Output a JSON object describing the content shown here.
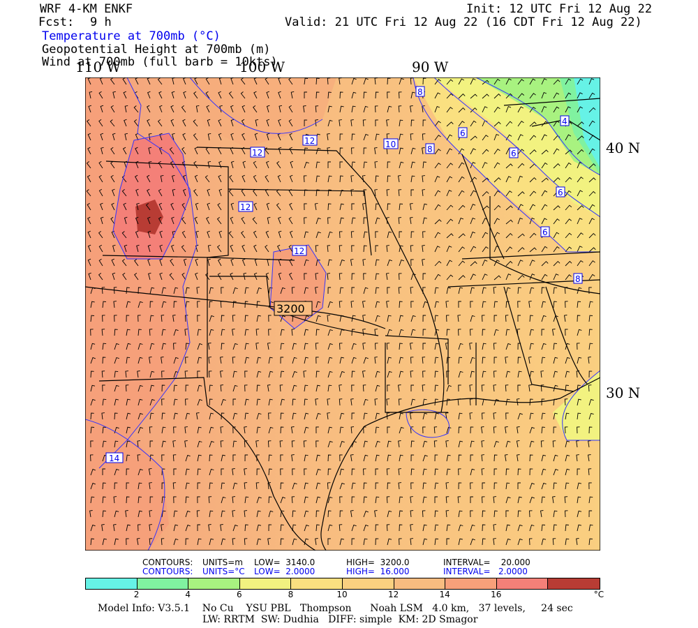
{
  "header": {
    "model": "WRF 4-KM ENKF",
    "fcst_label": "Fcst:",
    "fcst_value": "9 h",
    "init": "Init: 12 UTC Fri 12 Aug 22",
    "valid": "Valid: 21 UTC Fri 12 Aug 22 (16 CDT Fri 12 Aug 22)",
    "field1": "Temperature at 700mb (°C)",
    "field2": "Geopotential Height at 700mb (m)",
    "field3": "Wind at 700mb (full barb = 10kts)"
  },
  "axes": {
    "lon_labels": [
      "110 W",
      "100 W",
      "90 W"
    ],
    "lat_labels": [
      "40 N",
      "30 N"
    ]
  },
  "map_labels": {
    "temp_contours": [
      "8",
      "6",
      "6",
      "4",
      "6",
      "6",
      "8",
      "8",
      "12",
      "10",
      "8",
      "12",
      "12",
      "12",
      "14"
    ],
    "height_contour": "3200"
  },
  "contour_info": {
    "height": {
      "label": "CONTOURS:",
      "units": "UNITS=m",
      "low": "LOW=  3140.0",
      "high": "HIGH=  3200.0",
      "interval": "INTERVAL=    20.000"
    },
    "temp": {
      "label": "CONTOURS:",
      "units": "UNITS=°C",
      "low": "LOW=  2.0000",
      "high": "HIGH=  16.000",
      "interval": "INTERVAL=   2.0000"
    }
  },
  "colorbar": {
    "colors": [
      "#66f2e6",
      "#80f2a0",
      "#a8f280",
      "#f2f280",
      "#fae080",
      "#fad080",
      "#f8bc80",
      "#f8a07a",
      "#f48078",
      "#b83c34"
    ],
    "ticks": [
      "2",
      "4",
      "6",
      "8",
      "10",
      "12",
      "14",
      "16"
    ],
    "unit": "°C"
  },
  "footer": {
    "line1": "Model Info: V3.5.1    No Cu    YSU PBL   Thompson      Noah LSM   4.0 km,   37 levels,     24 sec",
    "line2": "LW: RRTM  SW: Dudhia   DIFF: simple  KM: 2D Smagor"
  }
}
